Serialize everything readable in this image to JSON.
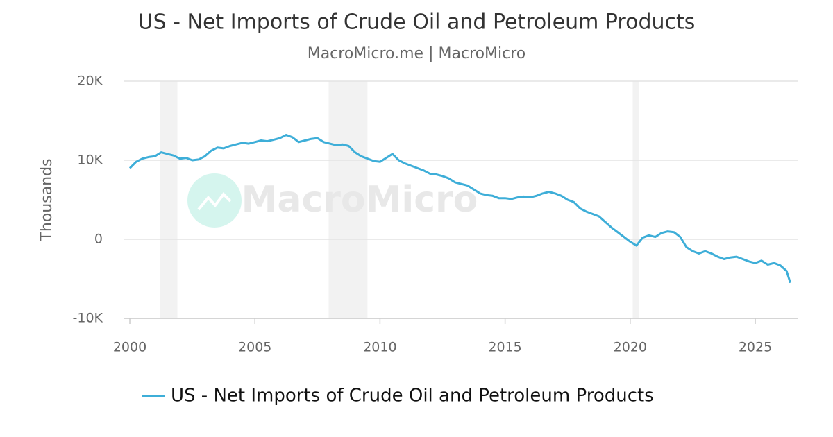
{
  "chart_data": {
    "type": "line",
    "title": "US - Net Imports of Crude Oil and Petroleum Products",
    "subtitle": "MacroMicro.me | MacroMicro",
    "watermark": "MacroMicro",
    "y_label": "Thousands",
    "xlim": [
      1999.75,
      2026.72
    ],
    "xticks": [
      2000,
      2005,
      2010,
      2015,
      2020,
      2025
    ],
    "ylim": [
      -10000,
      20000
    ],
    "yticks": [
      {
        "value": -10000,
        "label": "-10K"
      },
      0,
      {
        "value": 10000,
        "label": "10K"
      },
      {
        "value": 20000,
        "label": "20K"
      }
    ],
    "grid": true,
    "shaded_ranges": [
      [
        2001.2,
        2001.9
      ],
      [
        2007.95,
        2009.5
      ],
      [
        2020.1,
        2020.35
      ]
    ],
    "series": [
      {
        "name": "US - Net Imports of Crude Oil and Petroleum Products",
        "color": "#3eaed8",
        "x": [
          2000,
          2000.25,
          2000.5,
          2000.75,
          2001,
          2001.25,
          2001.5,
          2001.75,
          2002,
          2002.25,
          2002.5,
          2002.75,
          2003,
          2003.25,
          2003.5,
          2003.75,
          2004,
          2004.25,
          2004.5,
          2004.75,
          2005,
          2005.25,
          2005.5,
          2005.75,
          2006,
          2006.25,
          2006.5,
          2006.75,
          2007,
          2007.25,
          2007.5,
          2007.75,
          2008,
          2008.25,
          2008.5,
          2008.75,
          2009,
          2009.25,
          2009.5,
          2009.75,
          2010,
          2010.25,
          2010.5,
          2010.75,
          2011,
          2011.25,
          2011.5,
          2011.75,
          2012,
          2012.25,
          2012.5,
          2012.75,
          2013,
          2013.25,
          2013.5,
          2013.75,
          2014,
          2014.25,
          2014.5,
          2014.75,
          2015,
          2015.25,
          2015.5,
          2015.75,
          2016,
          2016.25,
          2016.5,
          2016.75,
          2017,
          2017.25,
          2017.5,
          2017.75,
          2018,
          2018.25,
          2018.5,
          2018.75,
          2019,
          2019.25,
          2019.5,
          2019.75,
          2020,
          2020.25,
          2020.5,
          2020.75,
          2021,
          2021.25,
          2021.5,
          2021.75,
          2022,
          2022.25,
          2022.5,
          2022.75,
          2023,
          2023.25,
          2023.5,
          2023.75,
          2024,
          2024.25,
          2024.5,
          2024.75,
          2025,
          2025.25,
          2025.5,
          2025.75,
          2026,
          2026.25,
          2026.4
        ],
        "values": [
          9000,
          9800,
          10200,
          10400,
          10500,
          11000,
          10800,
          10600,
          10200,
          10300,
          10000,
          10100,
          10500,
          11200,
          11600,
          11500,
          11800,
          12000,
          12200,
          12100,
          12300,
          12500,
          12400,
          12600,
          12800,
          13200,
          12900,
          12300,
          12500,
          12700,
          12800,
          12300,
          12100,
          11900,
          12000,
          11800,
          11000,
          10500,
          10200,
          9900,
          9800,
          10300,
          10800,
          10000,
          9600,
          9300,
          9000,
          8700,
          8300,
          8200,
          8000,
          7700,
          7200,
          7000,
          6800,
          6300,
          5800,
          5600,
          5500,
          5200,
          5200,
          5100,
          5300,
          5400,
          5300,
          5500,
          5800,
          6000,
          5800,
          5500,
          5000,
          4700,
          3900,
          3500,
          3200,
          2900,
          2200,
          1500,
          900,
          300,
          -300,
          -800,
          200,
          500,
          300,
          800,
          1000,
          900,
          300,
          -1000,
          -1500,
          -1800,
          -1500,
          -1800,
          -2200,
          -2500,
          -2300,
          -2200,
          -2500,
          -2800,
          -3000,
          -2700,
          -3200,
          -3000,
          -3300,
          -4000,
          -5500
        ]
      }
    ]
  }
}
